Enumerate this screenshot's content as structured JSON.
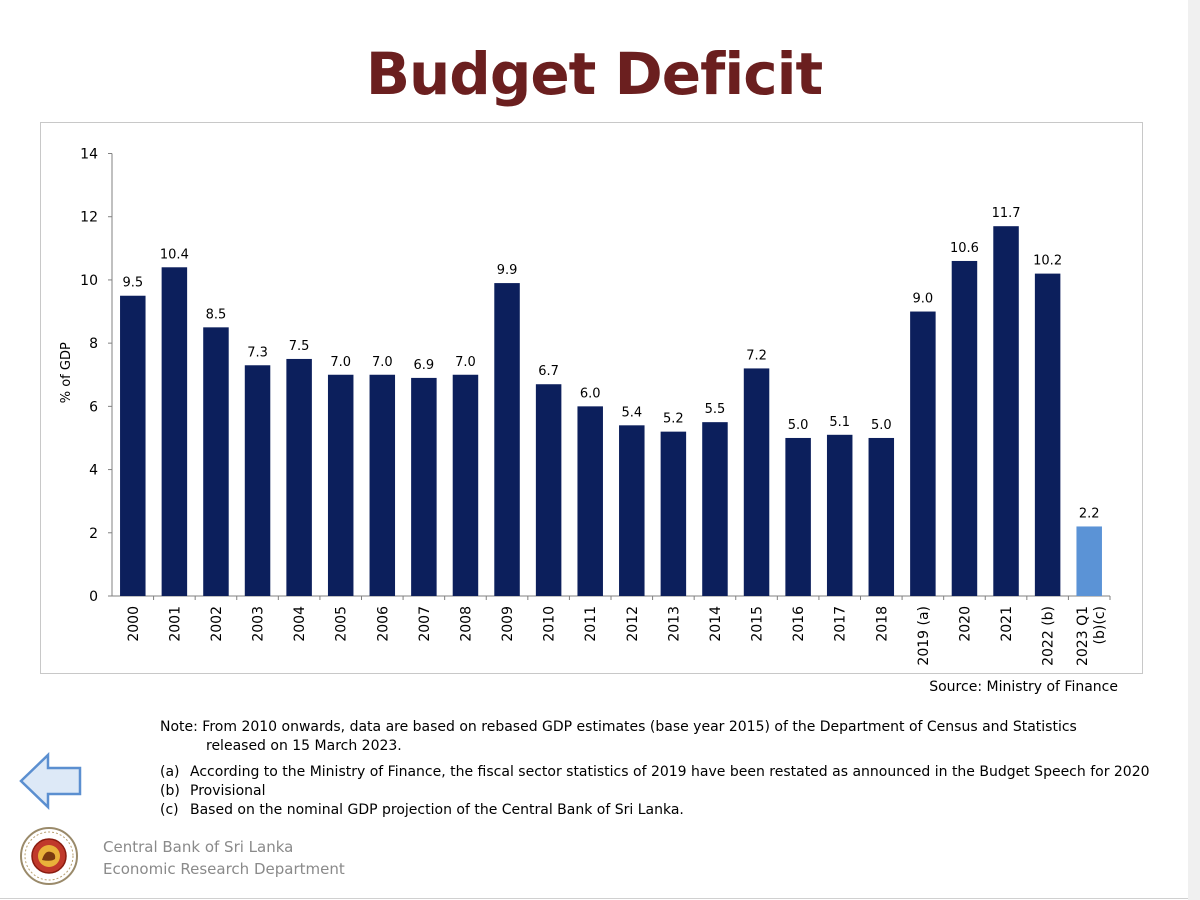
{
  "title": "Budget Deficit",
  "chart_data": {
    "type": "bar",
    "title": "",
    "xlabel": "",
    "ylabel": "% of GDP",
    "ylim": [
      0,
      14
    ],
    "yticks": [
      0,
      2,
      4,
      6,
      8,
      10,
      12,
      14
    ],
    "grid": false,
    "categories": [
      "2000",
      "2001",
      "2002",
      "2003",
      "2004",
      "2005",
      "2006",
      "2007",
      "2008",
      "2009",
      "2010",
      "2011",
      "2012",
      "2013",
      "2014",
      "2015",
      "2016",
      "2017",
      "2018",
      "2019 (a)",
      "2020",
      "2021",
      "2022 (b)",
      "2023 Q1 (b)(c)"
    ],
    "values": [
      9.5,
      10.4,
      8.5,
      7.3,
      7.5,
      7.0,
      7.0,
      6.9,
      7.0,
      9.9,
      6.7,
      6.0,
      5.4,
      5.2,
      5.5,
      7.2,
      5.0,
      5.1,
      5.0,
      9.0,
      10.6,
      11.7,
      10.2,
      2.2
    ],
    "value_labels": [
      "9.5",
      "10.4",
      "8.5",
      "7.3",
      "7.5",
      "7.0",
      "7.0",
      "6.9",
      "7.0",
      "9.9",
      "6.7",
      "6.0",
      "5.4",
      "5.2",
      "5.5",
      "7.2",
      "5.0",
      "5.1",
      "5.0",
      "9.0",
      "10.6",
      "11.7",
      "10.2",
      "2.2"
    ],
    "bar_color": "#0c1f5c",
    "highlight_color": "#5b93d6",
    "highlight_index": 23
  },
  "source": "Source: Ministry of Finance",
  "note": {
    "line1": "Note:  From 2010 onwards, data are based on rebased GDP estimates (base year 2015) of the Department of Census and Statistics",
    "line2": "released on 15 March 2023."
  },
  "footnotes": [
    {
      "key": "(a)",
      "text": "According to the Ministry of Finance, the fiscal sector statistics of 2019 have been restated as announced in the Budget Speech for 2020"
    },
    {
      "key": "(b)",
      "text": "Provisional"
    },
    {
      "key": "(c)",
      "text": "Based on the nominal GDP projection of the Central Bank of Sri Lanka."
    }
  ],
  "org": {
    "name": "Central Bank of Sri Lanka",
    "dept": "Economic Research Department"
  },
  "icons": {
    "back": "left-arrow-icon",
    "logo": "central-bank-seal"
  }
}
